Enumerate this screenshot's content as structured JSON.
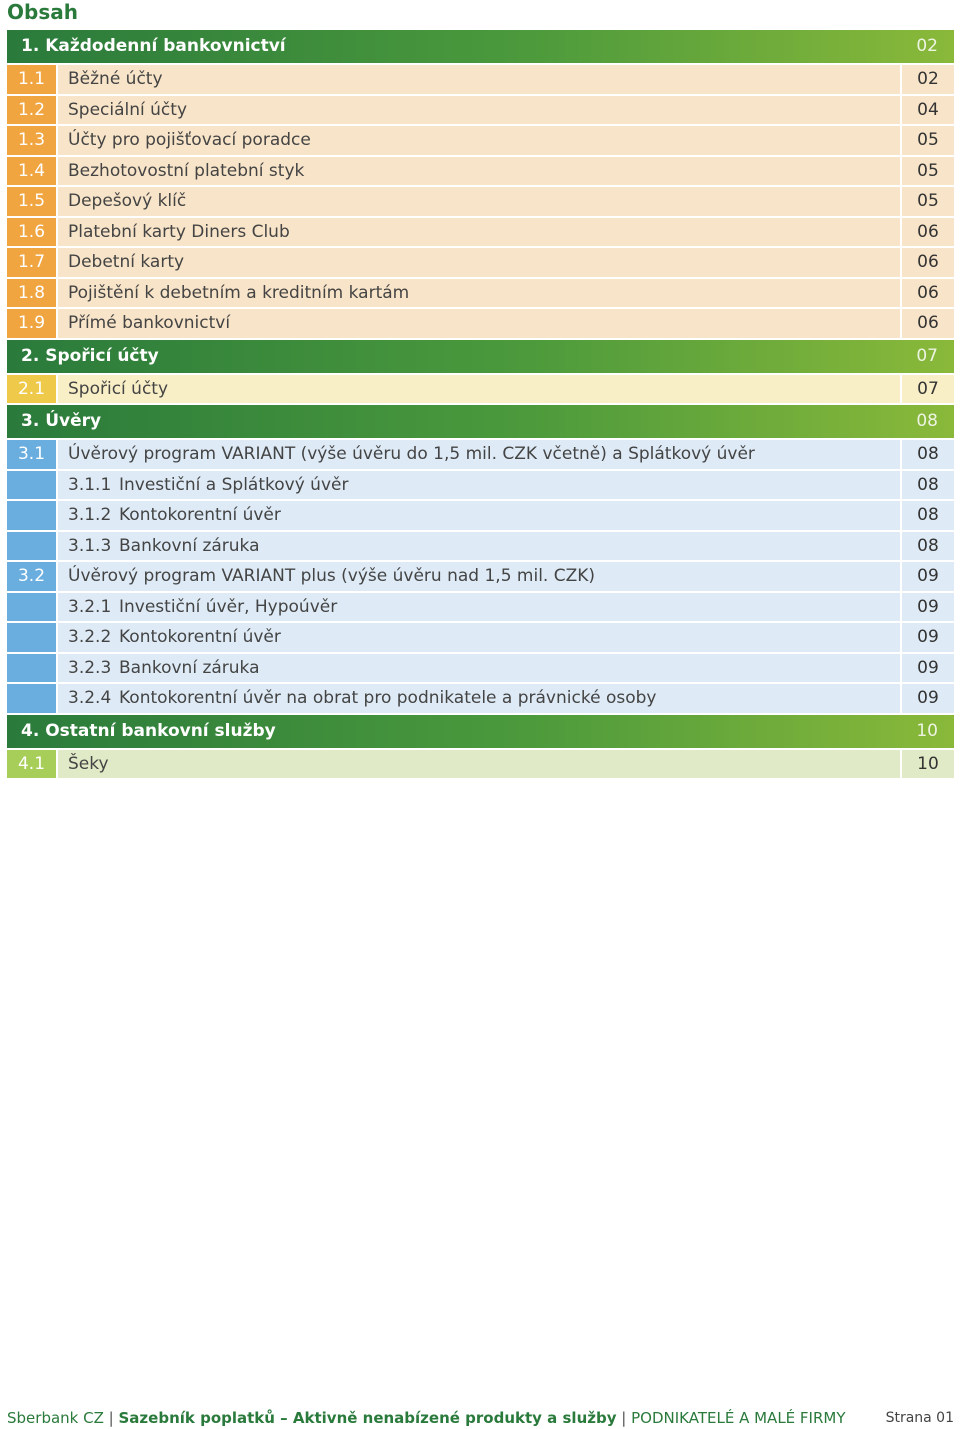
{
  "page": {
    "title": "Obsah"
  },
  "toc": [
    {
      "kind": "head",
      "label": "1.  Každodenní bankovnictví",
      "page": "02"
    },
    {
      "kind": "sub",
      "theme": "orange",
      "num": "1.1",
      "title": "Běžné účty",
      "page": "02"
    },
    {
      "kind": "sub",
      "theme": "orange",
      "num": "1.2",
      "title": "Speciální účty",
      "page": "04"
    },
    {
      "kind": "sub",
      "theme": "orange",
      "num": "1.3",
      "title": "Účty pro pojišťovací poradce",
      "page": "05"
    },
    {
      "kind": "sub",
      "theme": "orange",
      "num": "1.4",
      "title": "Bezhotovostní platební styk",
      "page": "05"
    },
    {
      "kind": "sub",
      "theme": "orange",
      "num": "1.5",
      "title": "Depešový klíč",
      "page": "05"
    },
    {
      "kind": "sub",
      "theme": "orange",
      "num": "1.6",
      "title": "Platební karty Diners Club",
      "page": "06"
    },
    {
      "kind": "sub",
      "theme": "orange",
      "num": "1.7",
      "title": "Debetní karty",
      "page": "06"
    },
    {
      "kind": "sub",
      "theme": "orange",
      "num": "1.8",
      "title": "Pojištění k debetním a kreditním kartám",
      "page": "06"
    },
    {
      "kind": "sub",
      "theme": "orange",
      "num": "1.9",
      "title": "Přímé bankovnictví",
      "page": "06"
    },
    {
      "kind": "head",
      "label": "2.  Spořicí účty",
      "page": "07"
    },
    {
      "kind": "sub",
      "theme": "yellow",
      "num": "2.1",
      "title": "Spořicí účty",
      "page": "07"
    },
    {
      "kind": "head",
      "label": "3.  Úvěry",
      "page": "08"
    },
    {
      "kind": "sub",
      "theme": "blue",
      "num": "3.1",
      "title": "Úvěrový program VARIANT (výše úvěru do 1,5 mil. CZK včetně) a Splátkový úvěr",
      "page": "08"
    },
    {
      "kind": "sub",
      "theme": "blue",
      "num": "",
      "subnum": "3.1.1",
      "title": "Investiční a Splátkový úvěr",
      "page": "08"
    },
    {
      "kind": "sub",
      "theme": "blue",
      "num": "",
      "subnum": "3.1.2",
      "title": "Kontokorentní úvěr",
      "page": "08"
    },
    {
      "kind": "sub",
      "theme": "blue",
      "num": "",
      "subnum": "3.1.3",
      "title": "Bankovní záruka",
      "page": "08"
    },
    {
      "kind": "sub",
      "theme": "blue",
      "num": "3.2",
      "title": "Úvěrový program VARIANT plus (výše úvěru nad 1,5 mil. CZK)",
      "page": "09"
    },
    {
      "kind": "sub",
      "theme": "blue",
      "num": "",
      "subnum": "3.2.1",
      "title": "Investiční úvěr, Hypoúvěr",
      "page": "09"
    },
    {
      "kind": "sub",
      "theme": "blue",
      "num": "",
      "subnum": "3.2.2",
      "title": "Kontokorentní úvěr",
      "page": "09"
    },
    {
      "kind": "sub",
      "theme": "blue",
      "num": "",
      "subnum": "3.2.3",
      "title": "Bankovní záruka",
      "page": "09"
    },
    {
      "kind": "sub",
      "theme": "blue",
      "num": "",
      "subnum": "3.2.4",
      "title": "Kontokorentní úvěr na obrat pro podnikatele a právnické osoby",
      "page": "09"
    },
    {
      "kind": "head",
      "label": "4.  Ostatní bankovní služby",
      "page": "10"
    },
    {
      "kind": "sub",
      "theme": "green",
      "num": "4.1",
      "title": "Šeky",
      "page": "10"
    }
  ],
  "footer": {
    "brand": "Sberbank CZ",
    "separator": "|",
    "document": "Sazebník poplatků – Aktivně nenabízené produkty a služby",
    "segment": "PODNIKATELÉ A MALÉ FIRMY",
    "page_label": "Strana 01"
  },
  "colors": {
    "brand_green": "#2a7a3c",
    "header_gradient_end": "#8ab93a",
    "orange": "#f0a540",
    "yellow": "#efc94a",
    "blue": "#6aaee0",
    "light_green": "#a8ce5a"
  }
}
